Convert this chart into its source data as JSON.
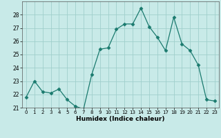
{
  "x": [
    0,
    1,
    2,
    3,
    4,
    5,
    6,
    7,
    8,
    9,
    10,
    11,
    12,
    13,
    14,
    15,
    16,
    17,
    18,
    19,
    20,
    21,
    22,
    23
  ],
  "y": [
    21.8,
    23.0,
    22.2,
    22.1,
    22.4,
    21.6,
    21.1,
    20.9,
    23.5,
    25.4,
    25.5,
    26.9,
    27.3,
    27.3,
    28.5,
    27.1,
    26.3,
    25.3,
    27.8,
    25.8,
    25.3,
    24.2,
    21.6,
    21.5
  ],
  "line_color": "#1a7a6e",
  "marker_color": "#1a7a6e",
  "bg_color": "#c8eae8",
  "grid_color": "#a0cfcc",
  "xlabel": "Humidex (Indice chaleur)",
  "ylim": [
    21,
    29
  ],
  "xlim": [
    -0.5,
    23.5
  ],
  "yticks": [
    21,
    22,
    23,
    24,
    25,
    26,
    27,
    28
  ],
  "xticks": [
    0,
    1,
    2,
    3,
    4,
    5,
    6,
    7,
    8,
    9,
    10,
    11,
    12,
    13,
    14,
    15,
    16,
    17,
    18,
    19,
    20,
    21,
    22,
    23
  ],
  "figsize": [
    3.2,
    2.0
  ],
  "dpi": 100
}
